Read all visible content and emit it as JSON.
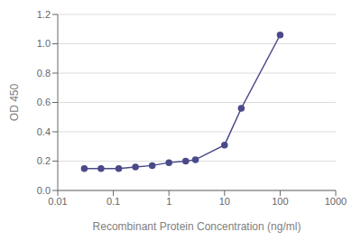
{
  "chart_data": {
    "type": "line",
    "x": [
      0.03,
      0.06,
      0.125,
      0.25,
      0.5,
      1.0,
      2.0,
      3.0,
      10.0,
      20.0,
      100.0
    ],
    "values": [
      0.15,
      0.15,
      0.15,
      0.16,
      0.17,
      0.19,
      0.2,
      0.21,
      0.31,
      0.56,
      1.06
    ],
    "color": "#4a4a8a",
    "marker": "circle",
    "x_label": "Recombinant Protein Concentration (ng/ml)",
    "y_label": "OD 450",
    "log": "x",
    "xlim": [
      0.01,
      1000
    ],
    "ylim": [
      0.0,
      1.2
    ],
    "xticks": [
      0.01,
      0.1,
      1,
      10,
      100,
      1000
    ],
    "yticks": [
      {
        "value": 0.0,
        "label": "0.0"
      },
      0.2,
      0.4,
      0.6,
      0.8,
      {
        "value": 1.0,
        "label": "1.0"
      },
      1.2
    ],
    "grid": "y"
  }
}
